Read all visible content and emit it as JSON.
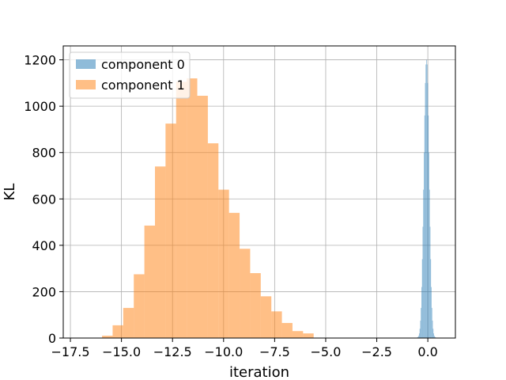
{
  "chart_data": {
    "type": "histogram",
    "xlabel": "iteration",
    "ylabel": "KL",
    "xlim": [
      -17.85,
      1.35
    ],
    "ylim": [
      0,
      1260
    ],
    "grid": true,
    "legend_position": "top-left",
    "x_ticks": [
      {
        "value": -17.5,
        "label": "−17.5"
      },
      {
        "value": -15.0,
        "label": "−15.0"
      },
      {
        "value": -12.5,
        "label": "−12.5"
      },
      {
        "value": -10.0,
        "label": "−10.0"
      },
      {
        "value": -7.5,
        "label": "−7.5"
      },
      {
        "value": -5.0,
        "label": "−5.0"
      },
      {
        "value": -2.5,
        "label": "−2.5"
      },
      {
        "value": 0.0,
        "label": "0.0"
      }
    ],
    "y_ticks": [
      {
        "value": 0,
        "label": "0"
      },
      {
        "value": 200,
        "label": "200"
      },
      {
        "value": 400,
        "label": "400"
      },
      {
        "value": 600,
        "label": "600"
      },
      {
        "value": 800,
        "label": "800"
      },
      {
        "value": 1000,
        "label": "1000"
      },
      {
        "value": 1200,
        "label": "1200"
      }
    ],
    "series": [
      {
        "name": "component 0",
        "color": "#1f77b4",
        "opacity": 0.5,
        "bin_start": -0.52,
        "bin_width": 0.0294,
        "counts": [
          3,
          5,
          10,
          20,
          40,
          75,
          130,
          220,
          340,
          480,
          640,
          800,
          960,
          1100,
          1180,
          1200,
          1180,
          1100,
          960,
          800,
          640,
          480,
          340,
          220,
          130,
          75,
          40,
          20,
          10,
          5,
          3
        ]
      },
      {
        "name": "component 1",
        "color": "#ff7f0e",
        "opacity": 0.5,
        "bin_start": -15.95,
        "bin_width": 0.518,
        "counts": [
          10,
          55,
          130,
          275,
          485,
          740,
          925,
          1105,
          1120,
          1045,
          840,
          640,
          540,
          385,
          280,
          180,
          115,
          65,
          30,
          20
        ]
      }
    ]
  }
}
